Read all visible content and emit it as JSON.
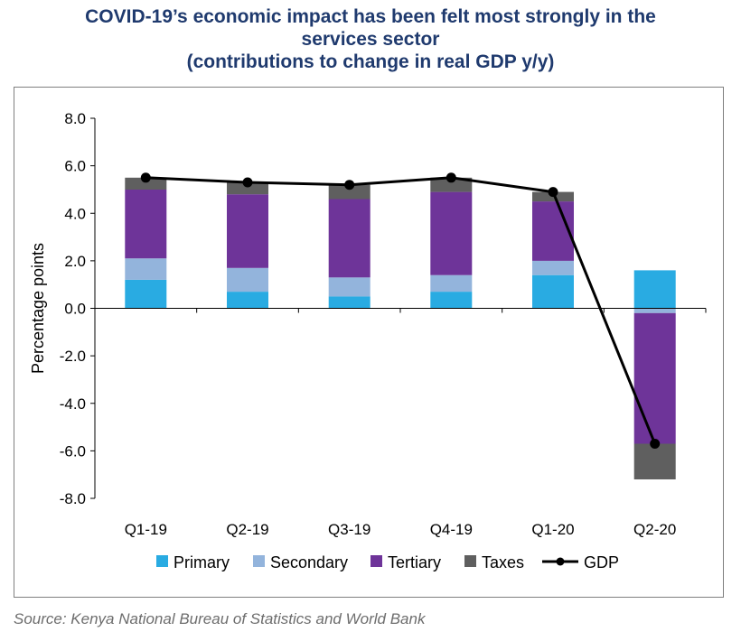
{
  "chart_data": {
    "type": "bar",
    "stacked": true,
    "title_lines": [
      "COVID-19’s economic impact has been felt most strongly in the",
      "services sector",
      "(contributions to change in real GDP y/y)"
    ],
    "ylabel": "Percentage points",
    "xlabel": "",
    "ylim": [
      -8.0,
      8.0
    ],
    "yticks": [
      "8.0",
      "6.0",
      "4.0",
      "2.0",
      "0.0",
      "-2.0",
      "-4.0",
      "-6.0",
      "-8.0"
    ],
    "ytick_values": [
      8,
      6,
      4,
      2,
      0,
      -2,
      -4,
      -6,
      -8
    ],
    "categories": [
      "Q1-19",
      "Q2-19",
      "Q3-19",
      "Q4-19",
      "Q1-20",
      "Q2-20"
    ],
    "series": [
      {
        "name": "Primary",
        "kind": "bar",
        "color": "#29abe2",
        "values": [
          1.2,
          0.7,
          0.5,
          0.7,
          1.4,
          1.6
        ]
      },
      {
        "name": "Secondary",
        "kind": "bar",
        "color": "#93b4dc",
        "values": [
          0.9,
          1.0,
          0.8,
          0.7,
          0.6,
          -0.2
        ]
      },
      {
        "name": "Tertiary",
        "kind": "bar",
        "color": "#6e3499",
        "values": [
          2.9,
          3.1,
          3.3,
          3.5,
          2.5,
          -5.5
        ]
      },
      {
        "name": "Taxes",
        "kind": "bar",
        "color": "#5f5f5f",
        "values": [
          0.5,
          0.5,
          0.6,
          0.6,
          0.4,
          -1.5
        ]
      },
      {
        "name": "GDP",
        "kind": "line",
        "color": "#000000",
        "values": [
          5.5,
          5.3,
          5.2,
          5.5,
          4.9,
          -5.7
        ]
      }
    ],
    "legend_position": "bottom",
    "grid": false
  },
  "source": "Source: Kenya National Bureau of Statistics and World Bank"
}
